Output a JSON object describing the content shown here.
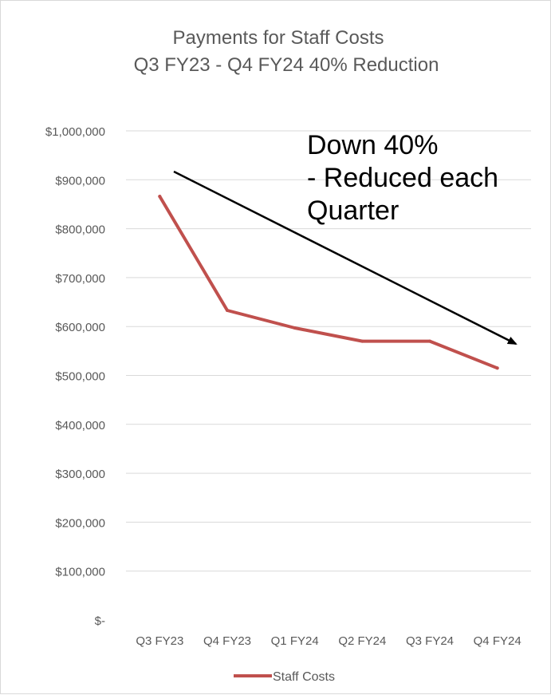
{
  "chart_data": {
    "type": "line",
    "title": "Payments for Staff Costs",
    "subtitle": "Q3 FY23 - Q4 FY24 40% Reduction",
    "categories": [
      "Q3 FY23",
      "Q4 FY23",
      "Q1 FY24",
      "Q2 FY24",
      "Q3 FY24",
      "Q4 FY24"
    ],
    "series": [
      {
        "name": "Staff Costs",
        "color": "#c0504d",
        "values": [
          866000,
          633000,
          597000,
          570000,
          570000,
          515000
        ]
      }
    ],
    "ylim": [
      0,
      1000000
    ],
    "yticks": [
      0,
      100000,
      200000,
      300000,
      400000,
      500000,
      600000,
      700000,
      800000,
      900000,
      1000000
    ],
    "ytick_labels": [
      "$-",
      "$100,000",
      "$200,000",
      "$300,000",
      "$400,000",
      "$500,000",
      "$600,000",
      "$700,000",
      "$800,000",
      "$900,000",
      "$1,000,000"
    ],
    "grid": true,
    "legend_position": "bottom",
    "annotation": {
      "lines": [
        "Down 40%",
        "- Reduced each",
        "Quarter"
      ],
      "arrow": "black arrow from upper left to lower right"
    }
  }
}
